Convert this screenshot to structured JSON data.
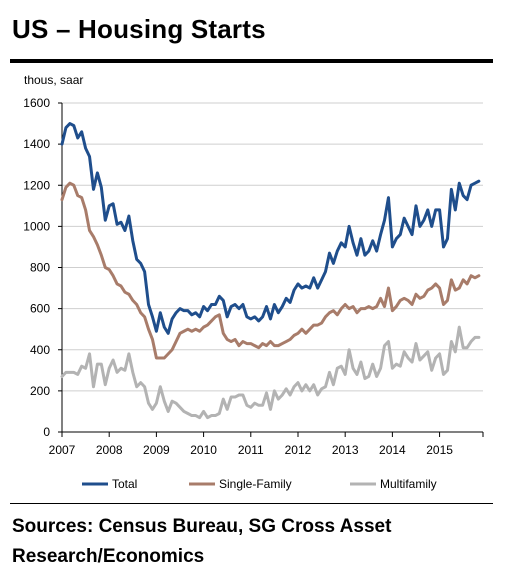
{
  "title": "US – Housing Starts",
  "sources": "Sources: Census Bureau, SG Cross Asset Research/Economics",
  "chart_data": {
    "type": "line",
    "ylabel": "thous, saar",
    "xlabel": "",
    "ylim": [
      0,
      1600
    ],
    "yticks": [
      0,
      200,
      400,
      600,
      800,
      1000,
      1200,
      1400,
      1600
    ],
    "xticks": [
      "2007",
      "2008",
      "2009",
      "2010",
      "2011",
      "2012",
      "2013",
      "2014",
      "2015"
    ],
    "xlim": [
      2007.0,
      2015.92
    ],
    "grid": "horizontal",
    "legend_position": "bottom",
    "x": [
      2007.0,
      2007.083,
      2007.167,
      2007.25,
      2007.333,
      2007.417,
      2007.5,
      2007.583,
      2007.667,
      2007.75,
      2007.833,
      2007.917,
      2008.0,
      2008.083,
      2008.167,
      2008.25,
      2008.333,
      2008.417,
      2008.5,
      2008.583,
      2008.667,
      2008.75,
      2008.833,
      2008.917,
      2009.0,
      2009.083,
      2009.167,
      2009.25,
      2009.333,
      2009.417,
      2009.5,
      2009.583,
      2009.667,
      2009.75,
      2009.833,
      2009.917,
      2010.0,
      2010.083,
      2010.167,
      2010.25,
      2010.333,
      2010.417,
      2010.5,
      2010.583,
      2010.667,
      2010.75,
      2010.833,
      2010.917,
      2011.0,
      2011.083,
      2011.167,
      2011.25,
      2011.333,
      2011.417,
      2011.5,
      2011.583,
      2011.667,
      2011.75,
      2011.833,
      2011.917,
      2012.0,
      2012.083,
      2012.167,
      2012.25,
      2012.333,
      2012.417,
      2012.5,
      2012.583,
      2012.667,
      2012.75,
      2012.833,
      2012.917,
      2013.0,
      2013.083,
      2013.167,
      2013.25,
      2013.333,
      2013.417,
      2013.5,
      2013.583,
      2013.667,
      2013.75,
      2013.833,
      2013.917,
      2014.0,
      2014.083,
      2014.167,
      2014.25,
      2014.333,
      2014.417,
      2014.5,
      2014.583,
      2014.667,
      2014.75,
      2014.833,
      2014.917,
      2015.0,
      2015.083,
      2015.167,
      2015.25,
      2015.333,
      2015.417,
      2015.5,
      2015.583,
      2015.667,
      2015.75,
      2015.833
    ],
    "series": [
      {
        "name": "Total",
        "color": "#1F4E8C",
        "values": [
          1400,
          1480,
          1500,
          1490,
          1430,
          1460,
          1380,
          1340,
          1180,
          1260,
          1190,
          1030,
          1100,
          1110,
          1010,
          1020,
          980,
          1050,
          930,
          840,
          820,
          780,
          620,
          560,
          490,
          580,
          510,
          480,
          550,
          580,
          600,
          590,
          590,
          570,
          580,
          560,
          610,
          590,
          620,
          620,
          660,
          640,
          560,
          610,
          620,
          600,
          620,
          560,
          550,
          560,
          540,
          560,
          610,
          550,
          620,
          580,
          610,
          650,
          630,
          690,
          720,
          700,
          710,
          700,
          750,
          700,
          740,
          780,
          870,
          820,
          880,
          920,
          900,
          1000,
          920,
          860,
          940,
          860,
          880,
          930,
          880,
          960,
          1030,
          1140,
          900,
          940,
          960,
          1040,
          1000,
          960,
          1100,
          1000,
          1030,
          1080,
          1000,
          1080,
          1080,
          900,
          940,
          1180,
          1080,
          1210,
          1150,
          1130,
          1200,
          1210,
          1220
        ]
      },
      {
        "name": "Single-Family",
        "color": "#A87C6A",
        "values": [
          1130,
          1190,
          1210,
          1200,
          1150,
          1140,
          1080,
          980,
          950,
          910,
          860,
          800,
          790,
          760,
          720,
          710,
          680,
          670,
          640,
          620,
          580,
          560,
          500,
          450,
          360,
          360,
          360,
          380,
          400,
          440,
          480,
          490,
          500,
          490,
          500,
          490,
          510,
          520,
          540,
          560,
          570,
          480,
          450,
          440,
          450,
          420,
          440,
          430,
          430,
          420,
          410,
          430,
          420,
          440,
          420,
          420,
          430,
          440,
          450,
          470,
          480,
          500,
          480,
          500,
          520,
          520,
          530,
          560,
          580,
          590,
          570,
          600,
          620,
          600,
          610,
          580,
          600,
          600,
          610,
          600,
          610,
          650,
          610,
          700,
          590,
          610,
          640,
          650,
          640,
          620,
          670,
          650,
          660,
          690,
          700,
          720,
          700,
          620,
          640,
          740,
          690,
          700,
          740,
          720,
          760,
          750,
          760
        ]
      },
      {
        "name": "Multifamily",
        "color": "#B3B3B3",
        "values": [
          270,
          290,
          290,
          290,
          280,
          320,
          310,
          380,
          220,
          330,
          330,
          230,
          310,
          350,
          290,
          310,
          300,
          380,
          290,
          220,
          240,
          220,
          140,
          110,
          140,
          220,
          150,
          100,
          150,
          140,
          120,
          100,
          90,
          80,
          80,
          70,
          100,
          70,
          80,
          80,
          90,
          160,
          110,
          170,
          170,
          180,
          180,
          130,
          120,
          140,
          130,
          130,
          190,
          110,
          200,
          160,
          180,
          210,
          180,
          220,
          240,
          200,
          230,
          200,
          230,
          180,
          210,
          220,
          290,
          230,
          310,
          320,
          280,
          400,
          310,
          280,
          340,
          260,
          270,
          330,
          270,
          310,
          420,
          440,
          310,
          330,
          320,
          390,
          360,
          340,
          430,
          350,
          370,
          390,
          300,
          360,
          380,
          280,
          300,
          440,
          390,
          510,
          410,
          410,
          440,
          460,
          460
        ]
      }
    ]
  }
}
